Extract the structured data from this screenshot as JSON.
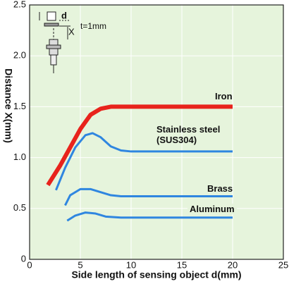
{
  "chart_data": {
    "type": "line",
    "y_label": "Distance X(mm)",
    "x_label": "Side length of sensing object d(mm)",
    "xlim": [
      0,
      25
    ],
    "xticks": [
      0,
      5,
      10,
      15,
      20,
      25
    ],
    "ylim": [
      0,
      2.5
    ],
    "yticks": [
      0,
      0.5,
      {
        "value": 1,
        "label": "1.0"
      },
      1.5,
      {
        "value": 2,
        "label": "2.0"
      },
      2.5
    ],
    "grid": true,
    "series": [
      {
        "name": "Iron",
        "color": "#e8231c",
        "x": [
          1.8,
          3,
          4,
          5,
          6,
          7,
          8,
          10,
          15,
          20
        ],
        "values": [
          0.73,
          0.92,
          1.1,
          1.28,
          1.42,
          1.48,
          1.5,
          1.5,
          1.5,
          1.5
        ]
      },
      {
        "name": "Stainless steel\n(SUS304)",
        "color": "#2f86e0",
        "x": [
          2.6,
          3.5,
          4.5,
          5.5,
          6.2,
          7,
          8,
          9,
          10,
          15,
          20
        ],
        "values": [
          0.68,
          0.9,
          1.1,
          1.22,
          1.24,
          1.2,
          1.11,
          1.07,
          1.06,
          1.06,
          1.06
        ]
      },
      {
        "name": "Brass",
        "color": "#2f86e0",
        "x": [
          3.5,
          4,
          5,
          6,
          7,
          8,
          9,
          15,
          20
        ],
        "values": [
          0.53,
          0.63,
          0.69,
          0.69,
          0.66,
          0.63,
          0.62,
          0.62,
          0.62
        ]
      },
      {
        "name": "Aluminum",
        "color": "#2f86e0",
        "x": [
          3.7,
          4.5,
          5.5,
          6.5,
          7.5,
          9,
          20
        ],
        "values": [
          0.38,
          0.43,
          0.46,
          0.45,
          0.42,
          0.41,
          0.41
        ]
      }
    ],
    "inset": {
      "d_label": "d",
      "x_label": "X",
      "t_label": "t=1mm"
    }
  }
}
